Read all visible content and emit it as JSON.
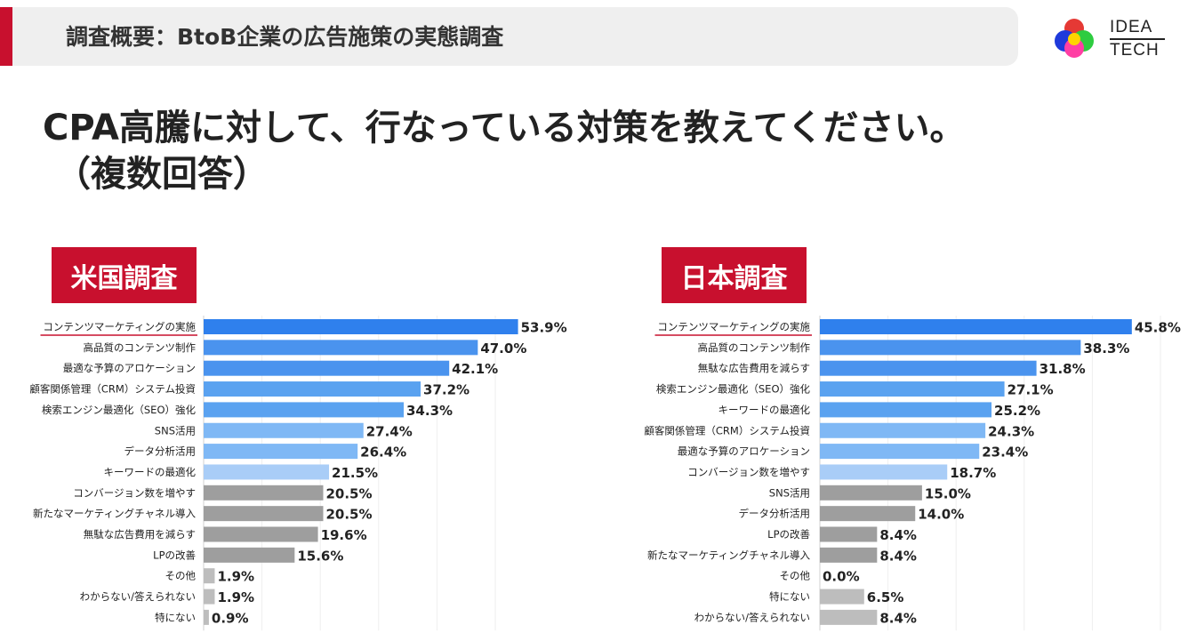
{
  "header": {
    "title": "調査概要：BtoB企業の広告施策の実態調査"
  },
  "logo": {
    "line1": "IDEA",
    "line2": "TECH"
  },
  "question": {
    "line1": "CPA高騰に対して、行なっている対策を教えてください。",
    "line2": "（複数回答）"
  },
  "colors": {
    "accent_red": "#c8102e",
    "blue_dark": "#2f80ed",
    "blue_mid": "#5aa2f0",
    "blue_light": "#a9cdf7",
    "gray": "#9e9e9e",
    "gray_light": "#bdbdbd"
  },
  "chart_data": [
    {
      "type": "bar",
      "orientation": "horizontal",
      "title": "米国調査",
      "unit": "%",
      "categories": [
        "コンテンツマーケティングの実施",
        "高品質のコンテンツ制作",
        "最適な予算のアロケーション",
        "顧客関係管理（CRM）システム投資",
        "検索エンジン最適化（SEO）強化",
        "SNS活用",
        "データ分析活用",
        "キーワードの最適化",
        "コンバージョン数を増やす",
        "新たなマーケティングチャネル導入",
        "無駄な広告費用を減らす",
        "LPの改善",
        "その他",
        "わからない/答えられない",
        "特にない"
      ],
      "values": [
        53.9,
        47.0,
        42.1,
        37.2,
        34.3,
        27.4,
        26.4,
        21.5,
        20.5,
        20.5,
        19.6,
        15.6,
        1.9,
        1.9,
        0.9
      ],
      "value_labels": [
        "53.9%",
        "47.0%",
        "42.1%",
        "37.2%",
        "34.3%",
        "27.4%",
        "26.4%",
        "21.5%",
        "20.5%",
        "20.5%",
        "19.6%",
        "15.6%",
        "1.9%",
        "1.9%",
        "0.9%"
      ],
      "colors": [
        "#2f80ed",
        "#4a93ee",
        "#4a93ee",
        "#5aa2f0",
        "#5aa2f0",
        "#7fb8f5",
        "#7fb8f5",
        "#a9cdf7",
        "#9e9e9e",
        "#9e9e9e",
        "#9e9e9e",
        "#9e9e9e",
        "#bdbdbd",
        "#bdbdbd",
        "#bdbdbd"
      ],
      "xlim": [
        0,
        60
      ]
    },
    {
      "type": "bar",
      "orientation": "horizontal",
      "title": "日本調査",
      "unit": "%",
      "categories": [
        "コンテンツマーケティングの実施",
        "高品質のコンテンツ制作",
        "無駄な広告費用を減らす",
        "検索エンジン最適化（SEO）強化",
        "キーワードの最適化",
        "顧客関係管理（CRM）システム投資",
        "最適な予算のアロケーション",
        "コンバージョン数を増やす",
        "SNS活用",
        "データ分析活用",
        "LPの改善",
        "新たなマーケティングチャネル導入",
        "その他",
        "特にない",
        "わからない/答えられない"
      ],
      "values": [
        45.8,
        38.3,
        31.8,
        27.1,
        25.2,
        24.3,
        23.4,
        18.7,
        15.0,
        14.0,
        8.4,
        8.4,
        0.0,
        6.5,
        8.4
      ],
      "value_labels": [
        "45.8%",
        "38.3%",
        "31.8%",
        "27.1%",
        "25.2%",
        "24.3%",
        "23.4%",
        "18.7%",
        "15.0%",
        "14.0%",
        "8.4%",
        "8.4%",
        "0.0%",
        "6.5%",
        "8.4%"
      ],
      "colors": [
        "#2f80ed",
        "#4a93ee",
        "#4a93ee",
        "#5aa2f0",
        "#5aa2f0",
        "#7fb8f5",
        "#7fb8f5",
        "#a9cdf7",
        "#9e9e9e",
        "#9e9e9e",
        "#9e9e9e",
        "#9e9e9e",
        "#bdbdbd",
        "#bdbdbd",
        "#bdbdbd"
      ],
      "xlim": [
        0,
        50
      ]
    }
  ]
}
